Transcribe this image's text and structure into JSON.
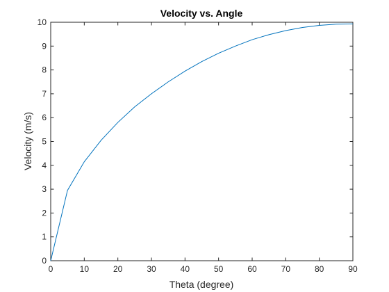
{
  "chart_data": {
    "type": "line",
    "title": "Velocity vs. Angle",
    "xlabel": "Theta (degree)",
    "ylabel": "Velocity (m/s)",
    "xlim": [
      0,
      90
    ],
    "ylim": [
      0,
      10
    ],
    "xticks": [
      0,
      10,
      20,
      30,
      40,
      50,
      60,
      70,
      80,
      90
    ],
    "yticks": [
      0,
      1,
      2,
      3,
      4,
      5,
      6,
      7,
      8,
      9,
      10
    ],
    "grid": false,
    "line_color": "#0072BD",
    "series": [
      {
        "x": [
          0,
          5,
          10,
          15,
          20,
          25,
          30,
          35,
          40,
          45,
          50,
          55,
          60,
          65,
          70,
          75,
          80,
          85,
          90
        ],
        "y": [
          0,
          2.95,
          4.15,
          5.05,
          5.8,
          6.45,
          7.0,
          7.5,
          7.95,
          8.35,
          8.7,
          9.0,
          9.27,
          9.48,
          9.65,
          9.78,
          9.87,
          9.92,
          9.93
        ]
      }
    ]
  }
}
